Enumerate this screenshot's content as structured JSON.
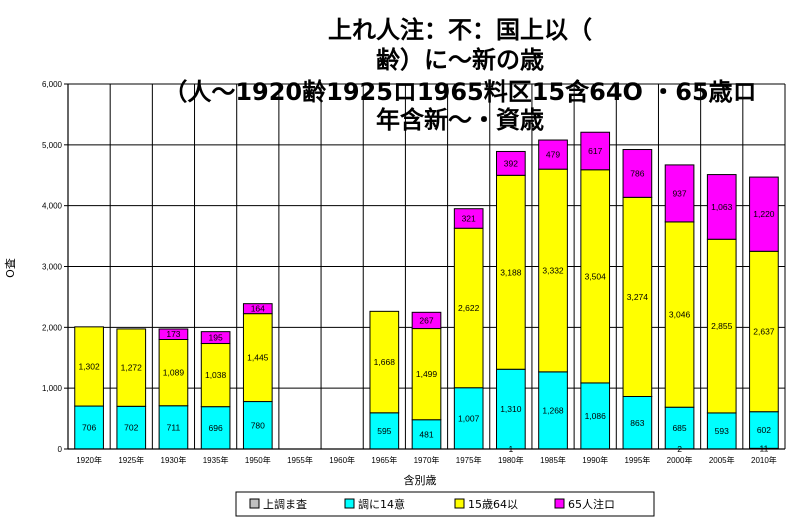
{
  "chart_data": {
    "type": "bar",
    "stacked": true,
    "title_lines": [
      "上れ人注：不：国上以（",
      "齢）に～新の歳",
      "（人～1920齢1925ロ1965料区15含64O ・65歳ロ",
      "年含新～・資歳"
    ],
    "xlabel": "含別歳",
    "ylabel": "O査",
    "ylim": [
      0,
      6000
    ],
    "yticks": [
      "0",
      "1,000",
      "2,000",
      "3,000",
      "4,000",
      "5,000",
      "6,000"
    ],
    "grid": true,
    "legend_position": "bottom",
    "categories": [
      "1920年",
      "1925年",
      "1930年",
      "1935年",
      "1950年",
      "1955年",
      "1960年",
      "1965年",
      "1970年",
      "1975年",
      "1980年",
      "1985年",
      "1990年",
      "1995年",
      "2000年",
      "2005年",
      "2010年"
    ],
    "series": [
      {
        "name": "上調ま査",
        "color": "#c0c0c0",
        "values": [
          0,
          0,
          0,
          0,
          0,
          0,
          0,
          0,
          0,
          0,
          1,
          0,
          0,
          0,
          2,
          0,
          11
        ],
        "labels": [
          "",
          "",
          "",
          "",
          "",
          "",
          "",
          "",
          "",
          "",
          "1",
          "",
          "",
          "",
          "2",
          "",
          "11"
        ]
      },
      {
        "name": "調に14意",
        "color": "#00ffff",
        "values": [
          706,
          702,
          711,
          696,
          780,
          0,
          0,
          595,
          481,
          1007,
          1310,
          1268,
          1086,
          863,
          685,
          593,
          602
        ],
        "labels": [
          "706",
          "702",
          "711",
          "696",
          "780",
          "",
          "",
          "595",
          "481",
          "1,007",
          "1,310",
          "1,268",
          "1,086",
          "863",
          "685",
          "593",
          "602"
        ]
      },
      {
        "name": "15歳64以",
        "color": "#ffff00",
        "values": [
          1302,
          1272,
          1089,
          1038,
          1445,
          0,
          0,
          1668,
          1499,
          2622,
          3188,
          3332,
          3504,
          3274,
          3046,
          2855,
          2637
        ],
        "labels": [
          "1,302",
          "1,272",
          "1,089",
          "1,038",
          "1,445",
          "",
          "",
          "1,668",
          "1,499",
          "2,622",
          "3,188",
          "3,332",
          "3,504",
          "3,274",
          "3,046",
          "2,855",
          "2,637"
        ]
      },
      {
        "name": "65人注ロ",
        "color": "#ff00ff",
        "values": [
          0,
          0,
          173,
          195,
          164,
          0,
          0,
          0,
          267,
          321,
          392,
          479,
          617,
          786,
          937,
          1063,
          1220
        ],
        "labels": [
          "",
          "",
          "173",
          "195",
          "164",
          "",
          "",
          "",
          "267",
          "321",
          "392",
          "479",
          "617",
          "786",
          "937",
          "1,063",
          "1,220"
        ]
      }
    ]
  }
}
